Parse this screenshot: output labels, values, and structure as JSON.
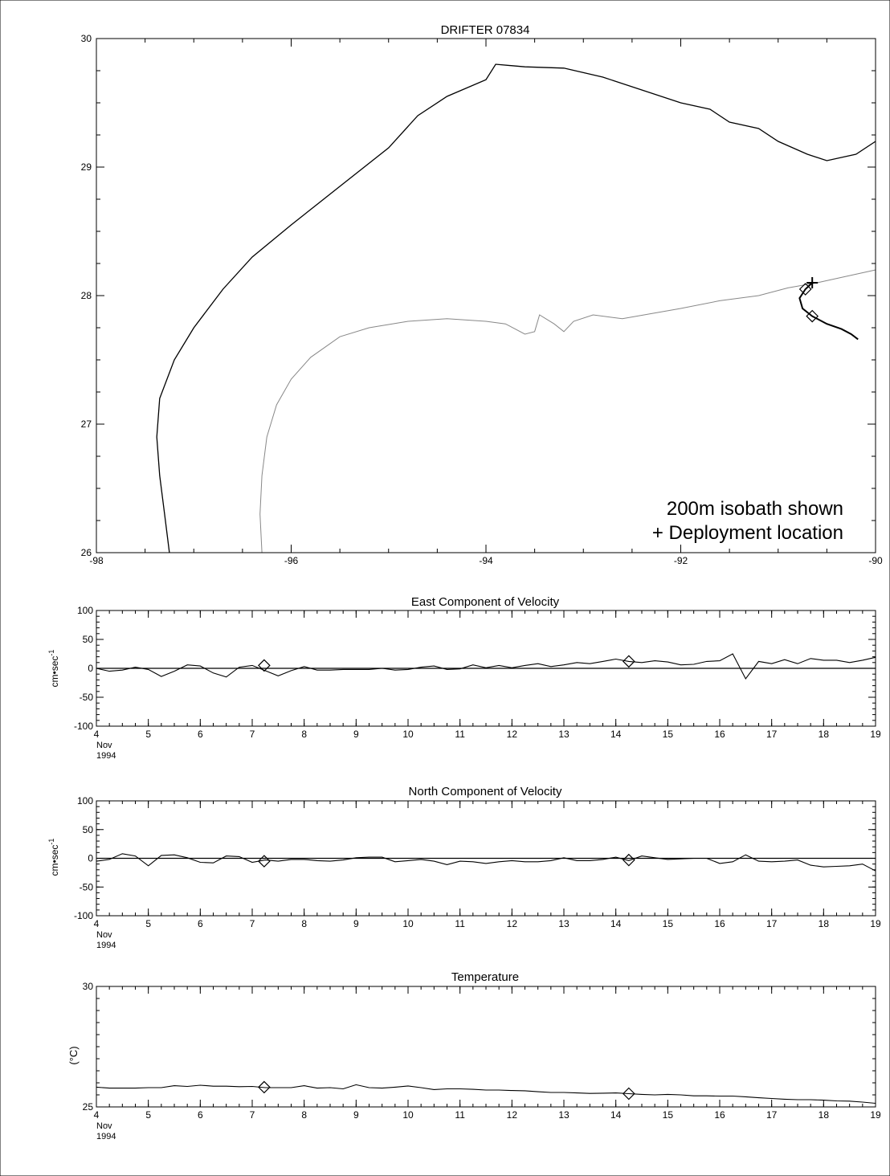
{
  "chart_data": [
    {
      "type": "map",
      "title": "DRIFTER 07834",
      "xlabel": "",
      "ylabel": "",
      "xlim": [
        -98,
        -90
      ],
      "ylim": [
        26,
        30
      ],
      "x_ticks": [
        "-98",
        "-96",
        "-94",
        "-92",
        "-90"
      ],
      "y_ticks": [
        "26",
        "27",
        "28",
        "29",
        "30"
      ],
      "annotations": [
        "200m isobath shown",
        "+ Deployment location"
      ],
      "deployment": {
        "lon": -90.65,
        "lat": 28.1
      },
      "markers": [
        {
          "lon": -90.72,
          "lat": 28.05
        },
        {
          "lon": -90.65,
          "lat": 27.84
        }
      ],
      "track": [
        [
          -90.65,
          28.1
        ],
        [
          -90.72,
          28.05
        ],
        [
          -90.78,
          27.98
        ],
        [
          -90.75,
          27.9
        ],
        [
          -90.65,
          27.84
        ],
        [
          -90.5,
          27.78
        ],
        [
          -90.35,
          27.74
        ],
        [
          -90.25,
          27.7
        ],
        [
          -90.18,
          27.66
        ]
      ],
      "isobath_200m": [
        [
          -96.3,
          26.0
        ],
        [
          -96.32,
          26.3
        ],
        [
          -96.3,
          26.6
        ],
        [
          -96.25,
          26.9
        ],
        [
          -96.15,
          27.15
        ],
        [
          -96.0,
          27.35
        ],
        [
          -95.8,
          27.52
        ],
        [
          -95.5,
          27.68
        ],
        [
          -95.2,
          27.75
        ],
        [
          -94.8,
          27.8
        ],
        [
          -94.4,
          27.82
        ],
        [
          -94.0,
          27.8
        ],
        [
          -93.8,
          27.78
        ],
        [
          -93.6,
          27.7
        ],
        [
          -93.5,
          27.72
        ],
        [
          -93.45,
          27.85
        ],
        [
          -93.3,
          27.78
        ],
        [
          -93.2,
          27.72
        ],
        [
          -93.1,
          27.8
        ],
        [
          -92.9,
          27.85
        ],
        [
          -92.6,
          27.82
        ],
        [
          -92.3,
          27.86
        ],
        [
          -92.0,
          27.9
        ],
        [
          -91.6,
          27.96
        ],
        [
          -91.2,
          28.0
        ],
        [
          -90.9,
          28.06
        ],
        [
          -90.6,
          28.1
        ],
        [
          -90.3,
          28.15
        ],
        [
          -90.0,
          28.2
        ]
      ],
      "coastline": [
        [
          -97.25,
          26.0
        ],
        [
          -97.3,
          26.3
        ],
        [
          -97.35,
          26.6
        ],
        [
          -97.38,
          26.9
        ],
        [
          -97.35,
          27.2
        ],
        [
          -97.2,
          27.5
        ],
        [
          -97.0,
          27.75
        ],
        [
          -96.7,
          28.05
        ],
        [
          -96.4,
          28.3
        ],
        [
          -96.0,
          28.55
        ],
        [
          -95.5,
          28.85
        ],
        [
          -95.0,
          29.15
        ],
        [
          -94.7,
          29.4
        ],
        [
          -94.4,
          29.55
        ],
        [
          -94.0,
          29.68
        ],
        [
          -93.9,
          29.8
        ],
        [
          -93.6,
          29.78
        ],
        [
          -93.2,
          29.77
        ],
        [
          -92.8,
          29.7
        ],
        [
          -92.4,
          29.6
        ],
        [
          -92.0,
          29.5
        ],
        [
          -91.7,
          29.45
        ],
        [
          -91.5,
          29.35
        ],
        [
          -91.2,
          29.3
        ],
        [
          -91.0,
          29.2
        ],
        [
          -90.7,
          29.1
        ],
        [
          -90.5,
          29.05
        ],
        [
          -90.2,
          29.1
        ],
        [
          -90.0,
          29.2
        ]
      ]
    },
    {
      "type": "line",
      "title": "East Component of Velocity",
      "ylabel": "cm•sec",
      "ylabel_sup": "-1",
      "xlim": [
        4,
        19
      ],
      "ylim": [
        -100,
        100
      ],
      "y_ticks": [
        "100",
        "50",
        "0",
        "-50",
        "-100"
      ],
      "x_ticks": [
        "4",
        "5",
        "6",
        "7",
        "8",
        "9",
        "10",
        "11",
        "12",
        "13",
        "14",
        "15",
        "16",
        "17",
        "18",
        "19"
      ],
      "x_month": "Nov",
      "x_year": "1994",
      "zero_line": true,
      "x": [
        4,
        4.25,
        4.5,
        4.75,
        5,
        5.25,
        5.5,
        5.75,
        6,
        6.25,
        6.5,
        6.75,
        7,
        7.25,
        7.5,
        7.75,
        8,
        8.25,
        8.5,
        8.75,
        9,
        9.25,
        9.5,
        9.75,
        10,
        10.25,
        10.5,
        10.75,
        11,
        11.25,
        11.5,
        11.75,
        12,
        12.25,
        12.5,
        12.75,
        13,
        13.25,
        13.5,
        13.75,
        14,
        14.25,
        14.5,
        14.75,
        15,
        15.25,
        15.5,
        15.75,
        16,
        16.25,
        16.5,
        16.75,
        17,
        17.25,
        17.5,
        17.75,
        18,
        18.25,
        18.5,
        18.75,
        19
      ],
      "values": [
        0,
        -5,
        -3,
        2,
        -2,
        -14,
        -5,
        6,
        4,
        -8,
        -15,
        2,
        5,
        -4,
        -13,
        -4,
        3,
        -3,
        -3,
        -2,
        -2,
        -2,
        0,
        -3,
        -2,
        2,
        4,
        -2,
        -1,
        6,
        1,
        5,
        1,
        5,
        8,
        3,
        6,
        10,
        8,
        12,
        16,
        12,
        10,
        13,
        11,
        6,
        7,
        12,
        13,
        25,
        -18,
        12,
        8,
        15,
        8,
        17,
        14,
        14,
        10,
        14,
        19
      ],
      "markers": [
        {
          "x": 7.23,
          "y": 5
        },
        {
          "x": 14.25,
          "y": 12
        }
      ]
    },
    {
      "type": "line",
      "title": "North Component of Velocity",
      "ylabel": "cm•sec",
      "ylabel_sup": "-1",
      "xlim": [
        4,
        19
      ],
      "ylim": [
        -100,
        100
      ],
      "y_ticks": [
        "100",
        "50",
        "0",
        "-50",
        "-100"
      ],
      "x_ticks": [
        "4",
        "5",
        "6",
        "7",
        "8",
        "9",
        "10",
        "11",
        "12",
        "13",
        "14",
        "15",
        "16",
        "17",
        "18",
        "19"
      ],
      "x_month": "Nov",
      "x_year": "1994",
      "zero_line": true,
      "x": [
        4,
        4.25,
        4.5,
        4.75,
        5,
        5.25,
        5.5,
        5.75,
        6,
        6.25,
        6.5,
        6.75,
        7,
        7.25,
        7.5,
        7.75,
        8,
        8.25,
        8.5,
        8.75,
        9,
        9.25,
        9.5,
        9.75,
        10,
        10.25,
        10.5,
        10.75,
        11,
        11.25,
        11.5,
        11.75,
        12,
        12.25,
        12.5,
        12.75,
        13,
        13.25,
        13.5,
        13.75,
        14,
        14.25,
        14.5,
        14.75,
        15,
        15.25,
        15.5,
        15.75,
        16,
        16.25,
        16.5,
        16.75,
        17,
        17.25,
        17.5,
        17.75,
        18,
        18.25,
        18.5,
        18.75,
        19
      ],
      "values": [
        -5,
        -2,
        8,
        4,
        -13,
        5,
        6,
        1,
        -7,
        -8,
        4,
        3,
        -7,
        -3,
        -5,
        -2,
        -2,
        -4,
        -5,
        -3,
        1,
        2,
        2,
        -6,
        -4,
        -2,
        -5,
        -11,
        -5,
        -6,
        -9,
        -6,
        -4,
        -6,
        -6,
        -4,
        1,
        -4,
        -4,
        -2,
        2,
        -4,
        4,
        1,
        -2,
        -1,
        0,
        0,
        -9,
        -6,
        6,
        -5,
        -6,
        -5,
        -3,
        -12,
        -15,
        -14,
        -13,
        -10,
        -22
      ],
      "markers": [
        {
          "x": 7.23,
          "y": -5
        },
        {
          "x": 14.25,
          "y": -3
        }
      ]
    },
    {
      "type": "line",
      "title": "Temperature",
      "ylabel": "(°C)",
      "xlim": [
        4,
        19
      ],
      "ylim": [
        25,
        30
      ],
      "y_ticks": [
        "30",
        "25"
      ],
      "x_ticks": [
        "4",
        "5",
        "6",
        "7",
        "8",
        "9",
        "10",
        "11",
        "12",
        "13",
        "14",
        "15",
        "16",
        "17",
        "18",
        "19"
      ],
      "x_month": "Nov",
      "x_year": "1994",
      "x": [
        4,
        4.25,
        4.5,
        4.75,
        5,
        5.25,
        5.5,
        5.75,
        6,
        6.25,
        6.5,
        6.75,
        7,
        7.25,
        7.5,
        7.75,
        8,
        8.25,
        8.5,
        8.75,
        9,
        9.25,
        9.5,
        9.75,
        10,
        10.25,
        10.5,
        10.75,
        11,
        11.25,
        11.5,
        11.75,
        12,
        12.25,
        12.5,
        12.75,
        13,
        13.25,
        13.5,
        13.75,
        14,
        14.25,
        14.5,
        14.75,
        15,
        15.25,
        15.5,
        15.75,
        16,
        16.25,
        16.5,
        16.75,
        17,
        17.25,
        17.5,
        17.75,
        18,
        18.25,
        18.5,
        18.75,
        19
      ],
      "values": [
        25.82,
        25.78,
        25.78,
        25.78,
        25.8,
        25.8,
        25.88,
        25.85,
        25.9,
        25.86,
        25.86,
        25.84,
        25.85,
        25.8,
        25.8,
        25.8,
        25.88,
        25.78,
        25.8,
        25.75,
        25.92,
        25.8,
        25.78,
        25.82,
        25.87,
        25.8,
        25.72,
        25.75,
        25.75,
        25.73,
        25.7,
        25.7,
        25.68,
        25.67,
        25.63,
        25.6,
        25.6,
        25.58,
        25.56,
        25.57,
        25.58,
        25.55,
        25.52,
        25.5,
        25.52,
        25.5,
        25.46,
        25.46,
        25.45,
        25.45,
        25.42,
        25.38,
        25.35,
        25.32,
        25.3,
        25.3,
        25.28,
        25.25,
        25.24,
        25.2,
        25.15
      ],
      "markers": [
        {
          "x": 7.23,
          "y": 25.82
        },
        {
          "x": 14.25,
          "y": 25.55
        }
      ]
    }
  ]
}
